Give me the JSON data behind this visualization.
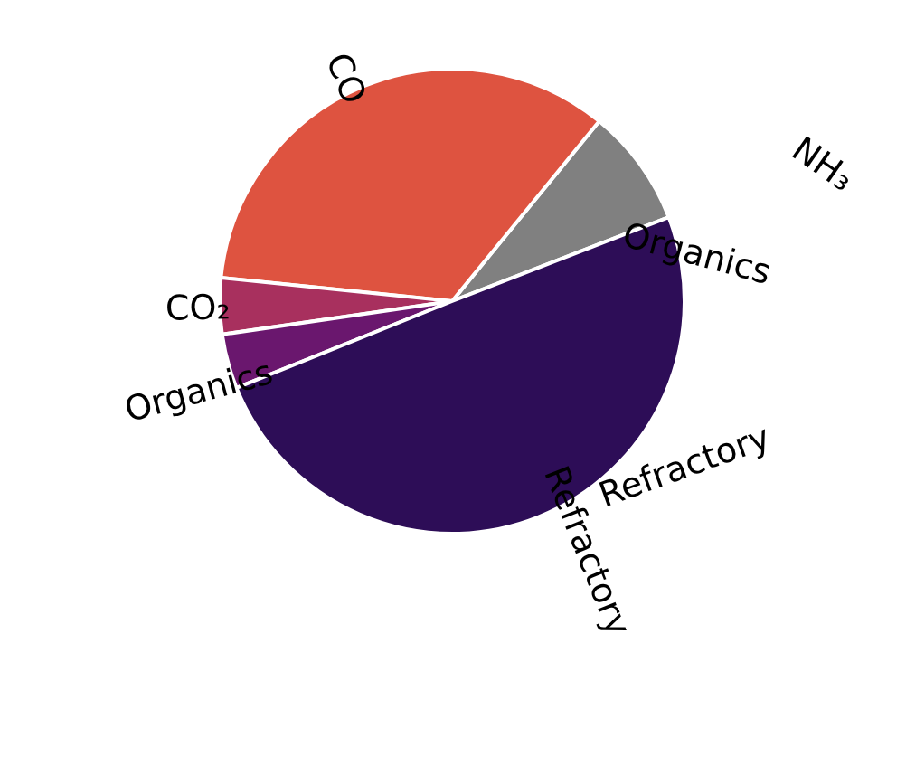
{
  "chart_data": {
    "type": "pie",
    "categories": [
      null,
      "CO",
      "CO₂",
      "Organics",
      "Refractory"
    ],
    "values": [
      8.2,
      34.3,
      3.9,
      3.8,
      49.8
    ],
    "colors": [
      "#808080",
      "#de5340",
      "#a8305e",
      "#6a176e",
      "#2d0d57"
    ],
    "annotations": [
      "NH₃",
      "Organics",
      "Refractory"
    ]
  }
}
